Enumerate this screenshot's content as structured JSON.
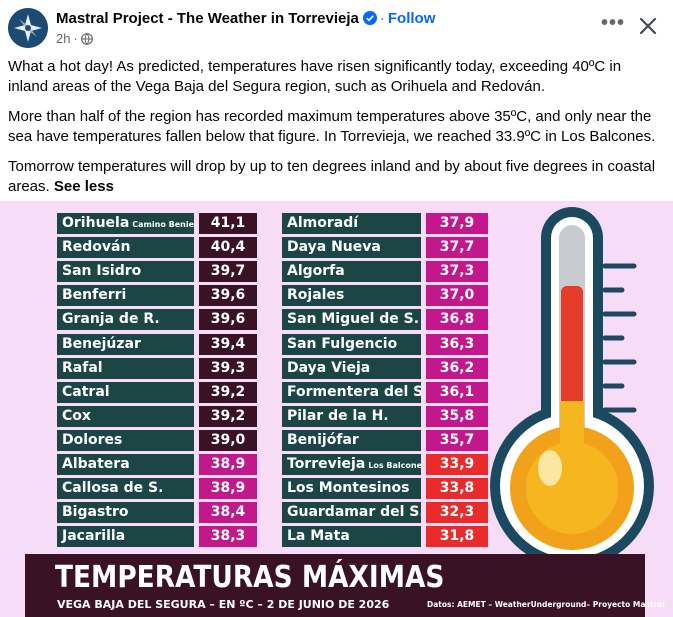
{
  "post": {
    "page_name": "Mastral Project - The Weather in Torrevieja",
    "separator": "·",
    "follow_label": "Follow",
    "time": "2h",
    "time_separator": "·",
    "more_label": "•••",
    "icons": {
      "avatar": "mastral-logo-icon",
      "verified": "verified-badge-icon",
      "privacy": "globe-icon",
      "close": "close-icon",
      "more": "more-options-icon"
    },
    "paragraphs": [
      "What a hot day! As predicted, temperatures have risen significantly today, exceeding 40ºC in inland areas of the Vega Baja del Segura region, such as Orihuela and Redován.",
      "More than half of the region has recorded maximum temperatures above 35ºC, and only near the sea have temperatures fallen below that figure. In Torrevieja, we reached 33.9ºC in Los Balcones."
    ],
    "last_paragraph": "Tomorrow temperatures will drop by up to ten degrees inland and by about five degrees in coastal areas.",
    "see_less_label": "See less"
  },
  "graphic": {
    "colors": {
      "name_bg": "#1c4646",
      "dark_red": "#3a1226",
      "magenta": "#c2188c",
      "red": "#ea2b2b",
      "background": "#f6dcf6"
    },
    "left_column": [
      {
        "name": "Orihuela",
        "note": "Camino Beniel",
        "value": "41,1",
        "color": "#3a1226"
      },
      {
        "name": "Redován",
        "note": "",
        "value": "40,4",
        "color": "#3a1226"
      },
      {
        "name": "San Isidro",
        "note": "",
        "value": "39,7",
        "color": "#3a1226"
      },
      {
        "name": "Benferri",
        "note": "",
        "value": "39,6",
        "color": "#3a1226"
      },
      {
        "name": "Granja de R.",
        "note": "",
        "value": "39,6",
        "color": "#3a1226"
      },
      {
        "name": "Benejúzar",
        "note": "",
        "value": "39,4",
        "color": "#3a1226"
      },
      {
        "name": "Rafal",
        "note": "",
        "value": "39,3",
        "color": "#3a1226"
      },
      {
        "name": "Catral",
        "note": "",
        "value": "39,2",
        "color": "#3a1226"
      },
      {
        "name": "Cox",
        "note": "",
        "value": "39,2",
        "color": "#3a1226"
      },
      {
        "name": "Dolores",
        "note": "",
        "value": "39,0",
        "color": "#3a1226"
      },
      {
        "name": "Albatera",
        "note": "",
        "value": "38,9",
        "color": "#c2188c"
      },
      {
        "name": "Callosa de S.",
        "note": "",
        "value": "38,9",
        "color": "#c2188c"
      },
      {
        "name": "Bigastro",
        "note": "",
        "value": "38,4",
        "color": "#c2188c"
      },
      {
        "name": "Jacarilla",
        "note": "",
        "value": "38,3",
        "color": "#c2188c"
      }
    ],
    "right_column": [
      {
        "name": "Almoradí",
        "note": "",
        "value": "37,9",
        "color": "#c2188c"
      },
      {
        "name": "Daya Nueva",
        "note": "",
        "value": "37,7",
        "color": "#c2188c"
      },
      {
        "name": "Algorfa",
        "note": "",
        "value": "37,3",
        "color": "#c2188c"
      },
      {
        "name": "Rojales",
        "note": "",
        "value": "37,0",
        "color": "#c2188c"
      },
      {
        "name": "San Miguel de S.",
        "note": "",
        "value": "36,8",
        "color": "#c2188c"
      },
      {
        "name": "San Fulgencio",
        "note": "",
        "value": "36,3",
        "color": "#c2188c"
      },
      {
        "name": "Daya Vieja",
        "note": "",
        "value": "36,2",
        "color": "#c2188c"
      },
      {
        "name": "Formentera del S.",
        "note": "",
        "value": "36,1",
        "color": "#c2188c"
      },
      {
        "name": "Pilar de la H.",
        "note": "",
        "value": "35,8",
        "color": "#c2188c"
      },
      {
        "name": "Benijófar",
        "note": "",
        "value": "35,7",
        "color": "#c2188c"
      },
      {
        "name": "Torrevieja",
        "note": "Los Balcones",
        "value": "33,9",
        "color": "#ea2b2b"
      },
      {
        "name": "Los Montesinos",
        "note": "",
        "value": "33,8",
        "color": "#ea2b2b"
      },
      {
        "name": "Guardamar del S.",
        "note": "",
        "value": "32,3",
        "color": "#ea2b2b"
      },
      {
        "name": "La Mata",
        "note": "",
        "value": "31,8",
        "color": "#ea2b2b"
      }
    ],
    "title": "TEMPERATURAS MÁXIMAS",
    "subtitle": "VEGA BAJA DEL SEGURA – EN ºC – 2 DE JUNIO DE 2026",
    "source": "Datos: AEMET – WeatherUnderground– Proyecto Mastral",
    "thermometer_icon": "thermometer-icon"
  }
}
